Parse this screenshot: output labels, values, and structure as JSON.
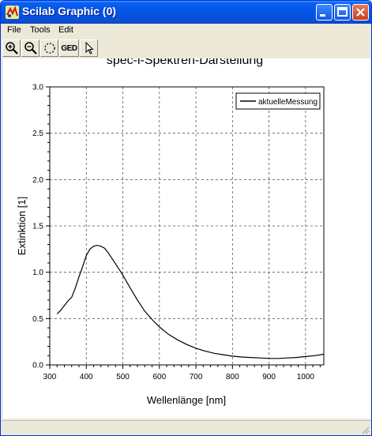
{
  "window": {
    "title": "Scilab Graphic (0)",
    "icons": [
      "scilab-app-icon",
      "minimize-icon",
      "maximize-icon",
      "close-icon"
    ]
  },
  "menu": {
    "items": [
      "File",
      "Tools",
      "Edit"
    ]
  },
  "toolbar": {
    "tools": [
      {
        "name": "zoom-in-icon"
      },
      {
        "name": "zoom-out-icon"
      },
      {
        "name": "rotate-icon"
      },
      {
        "name": "ged-button",
        "label": "GED"
      },
      {
        "name": "pointer-icon"
      }
    ]
  },
  "chart_data": {
    "type": "line",
    "title": "spec-i-Spektren-Darstellung",
    "xlabel": "Wellenlänge [nm]",
    "ylabel": "Extinktion [1]",
    "xlim": [
      300,
      1050
    ],
    "ylim": [
      0,
      3
    ],
    "x_ticks": [
      "300",
      "400",
      "500",
      "600",
      "700",
      "800",
      "900",
      "1000"
    ],
    "y_ticks": [
      "0.0",
      "0.5",
      "1.0",
      "1.5",
      "2.0",
      "2.5",
      "3.0"
    ],
    "grid": true,
    "legend": {
      "placement": "top-right",
      "entries": [
        "aktuelleMessung"
      ]
    },
    "series": [
      {
        "name": "aktuelleMessung",
        "color": "#000000",
        "x": [
          320,
          330,
          340,
          350,
          360,
          370,
          380,
          390,
          400,
          410,
          420,
          430,
          440,
          450,
          460,
          470,
          480,
          490,
          500,
          520,
          540,
          560,
          580,
          600,
          625,
          650,
          675,
          700,
          725,
          750,
          775,
          800,
          825,
          850,
          875,
          900,
          925,
          950,
          975,
          1000,
          1025,
          1050
        ],
        "y": [
          0.55,
          0.59,
          0.64,
          0.69,
          0.73,
          0.83,
          0.95,
          1.06,
          1.18,
          1.25,
          1.28,
          1.29,
          1.28,
          1.26,
          1.21,
          1.15,
          1.09,
          1.03,
          0.97,
          0.83,
          0.7,
          0.58,
          0.49,
          0.41,
          0.33,
          0.27,
          0.22,
          0.18,
          0.15,
          0.125,
          0.11,
          0.095,
          0.085,
          0.08,
          0.075,
          0.07,
          0.07,
          0.075,
          0.08,
          0.09,
          0.1,
          0.115
        ]
      }
    ]
  }
}
